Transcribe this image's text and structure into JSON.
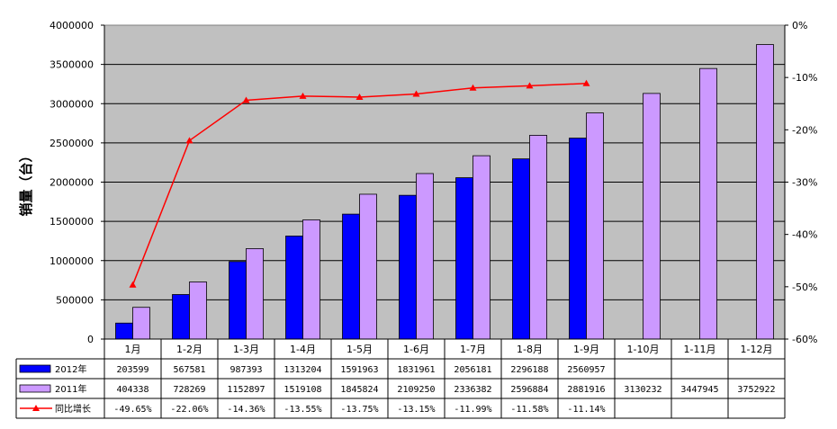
{
  "chart_data": {
    "type": "bar",
    "ylabel": "销量（台）",
    "ylim": [
      0,
      4000000
    ],
    "y_ticks": [
      "4000000",
      "3500000",
      "3000000",
      "2500000",
      "2000000",
      "1500000",
      "1000000",
      "500000",
      "0"
    ],
    "y2lim": [
      -60,
      0
    ],
    "y2_ticks": [
      "0%",
      "-10%",
      "-20%",
      "-30%",
      "-40%",
      "-50%",
      "-60%"
    ],
    "categories": [
      "1月",
      "1-2月",
      "1-3月",
      "1-4月",
      "1-5月",
      "1-6月",
      "1-7月",
      "1-8月",
      "1-9月",
      "1-10月",
      "1-11月",
      "1-12月"
    ],
    "series": [
      {
        "name": "2012年",
        "kind": "bar",
        "color": "#0000ff",
        "values": [
          203599,
          567581,
          987393,
          1313204,
          1591963,
          1831961,
          2056181,
          2296188,
          2560957,
          null,
          null,
          null
        ],
        "labels": [
          "203599",
          "567581",
          "987393",
          "1313204",
          "1591963",
          "1831961",
          "2056181",
          "2296188",
          "2560957",
          "",
          "",
          ""
        ]
      },
      {
        "name": "2011年",
        "kind": "bar",
        "color": "#cc99ff",
        "values": [
          404338,
          728269,
          1152897,
          1519108,
          1845824,
          2109250,
          2336382,
          2596884,
          2881916,
          3130232,
          3447945,
          3752922
        ],
        "labels": [
          "404338",
          "728269",
          "1152897",
          "1519108",
          "1845824",
          "2109250",
          "2336382",
          "2596884",
          "2881916",
          "3130232",
          "3447945",
          "3752922"
        ]
      },
      {
        "name": "同比增长",
        "kind": "line",
        "axis": "right",
        "color": "#ff0000",
        "values": [
          -49.65,
          -22.06,
          -14.36,
          -13.55,
          -13.75,
          -13.15,
          -11.99,
          -11.58,
          -11.14,
          null,
          null,
          null
        ],
        "labels": [
          "-49.65%",
          "-22.06%",
          "-14.36%",
          "-13.55%",
          "-13.75%",
          "-13.15%",
          "-11.99%",
          "-11.58%",
          "-11.14%",
          "",
          "",
          ""
        ]
      }
    ],
    "grid": true,
    "legend": "data-table-left",
    "plot_background": "#c0c0c0"
  }
}
